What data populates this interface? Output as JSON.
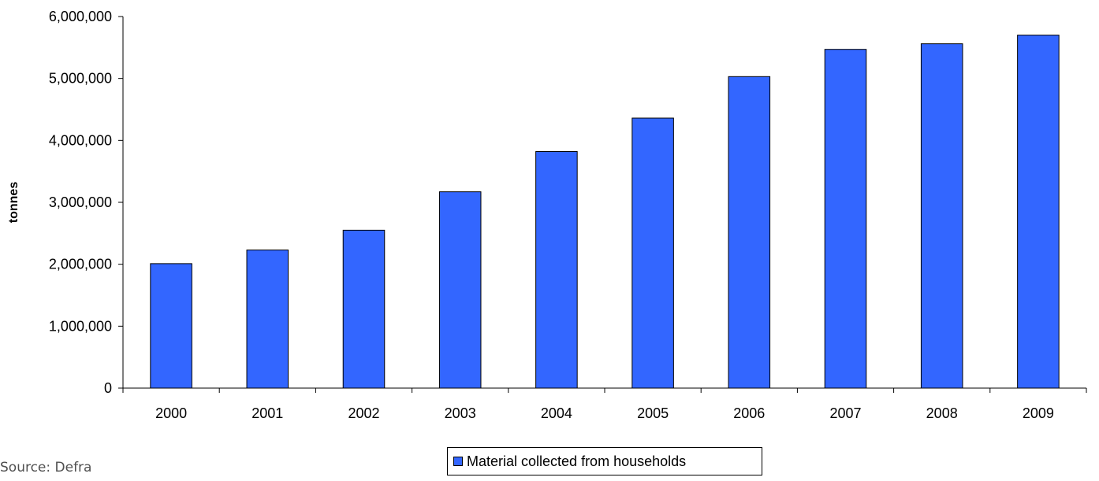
{
  "chart_data": {
    "type": "bar",
    "categories": [
      "2000",
      "2001",
      "2002",
      "2003",
      "2004",
      "2005",
      "2006",
      "2007",
      "2008",
      "2009"
    ],
    "series": [
      {
        "name": "Material collected from households",
        "values": [
          2010000,
          2230000,
          2550000,
          3170000,
          3820000,
          4360000,
          5030000,
          5470000,
          5560000,
          5700000
        ]
      }
    ],
    "title": "",
    "xlabel": "",
    "ylabel": "tonnes",
    "ylim": [
      0,
      6000000
    ],
    "yticks": [
      0,
      1000000,
      2000000,
      3000000,
      4000000,
      5000000,
      6000000
    ],
    "ytick_labels": [
      "0",
      "1,000,000",
      "2,000,000",
      "3,000,000",
      "4,000,000",
      "5,000,000",
      "6,000,000"
    ],
    "grid": false,
    "legend_position": "bottom",
    "bar_color": "#3366ff",
    "border_color": "#000000"
  },
  "source": "Source: Defra"
}
